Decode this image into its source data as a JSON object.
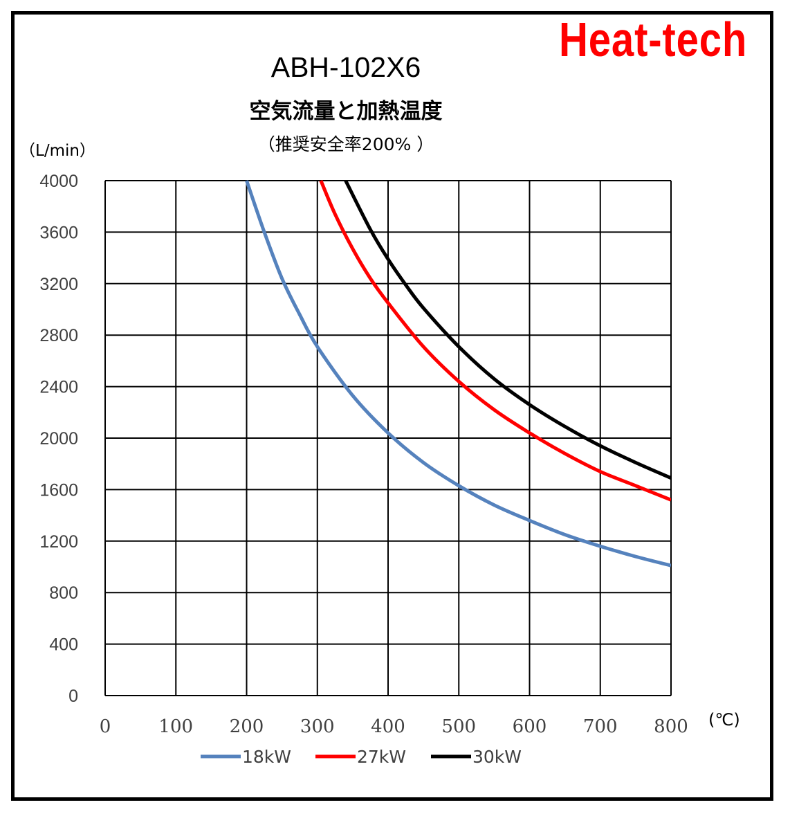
{
  "brand": "Heat-tech",
  "chart_data": {
    "type": "line",
    "title": "ABH-102X6",
    "subtitle": "空気流量と加熱温度",
    "note": "（推奨安全率200% ）",
    "ylabel": "（L/min）",
    "xlabel": "(℃)",
    "xlim": [
      0,
      800
    ],
    "ylim": [
      0,
      4000
    ],
    "xticks": [
      0,
      100,
      200,
      300,
      400,
      500,
      600,
      700,
      800
    ],
    "yticks": [
      0,
      400,
      800,
      1200,
      1600,
      2000,
      2400,
      2800,
      3200,
      3600,
      4000
    ],
    "grid": true,
    "legend_position": "bottom",
    "series": [
      {
        "name": "18kW",
        "color": "#5582bd",
        "x": [
          200,
          225,
          250,
          275,
          300,
          350,
          400,
          450,
          500,
          550,
          600,
          650,
          700,
          750,
          800
        ],
        "y": [
          4000,
          3600,
          3240,
          2960,
          2710,
          2330,
          2040,
          1810,
          1630,
          1480,
          1360,
          1250,
          1160,
          1080,
          1010
        ]
      },
      {
        "name": "27kW",
        "color": "#ff0000",
        "x": [
          305,
          325,
          350,
          375,
          400,
          450,
          500,
          550,
          600,
          650,
          700,
          750,
          800
        ],
        "y": [
          4000,
          3740,
          3470,
          3240,
          3050,
          2710,
          2440,
          2220,
          2040,
          1880,
          1740,
          1630,
          1520
        ]
      },
      {
        "name": "30kW",
        "color": "#000000",
        "x": [
          340,
          375,
          400,
          425,
          450,
          500,
          550,
          600,
          650,
          700,
          750,
          800
        ],
        "y": [
          4000,
          3620,
          3390,
          3190,
          3010,
          2710,
          2460,
          2260,
          2090,
          1940,
          1810,
          1690
        ]
      }
    ]
  }
}
